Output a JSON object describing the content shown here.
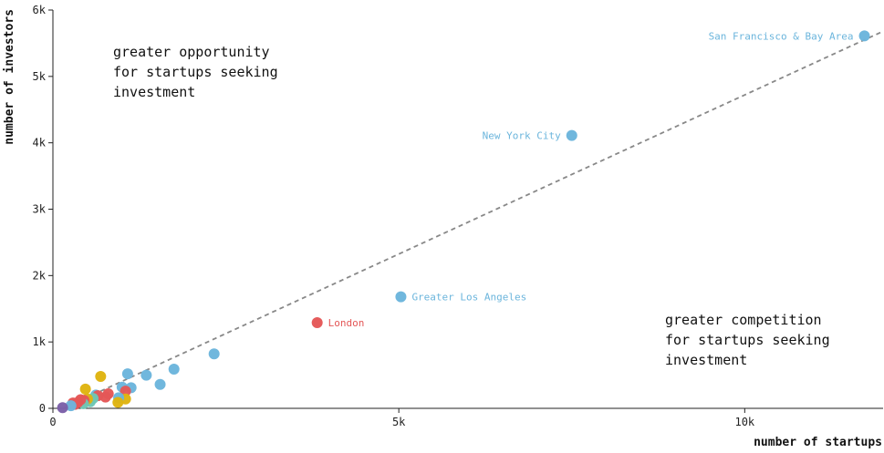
{
  "chart_data": {
    "type": "scatter",
    "xlabel": "number of startups",
    "ylabel": "number of investors",
    "xlim": [
      0,
      12000
    ],
    "ylim": [
      0,
      6000
    ],
    "x_ticks": [
      0,
      5000,
      10000
    ],
    "x_tick_labels": [
      "0",
      "5k",
      "10k"
    ],
    "y_ticks": [
      0,
      1000,
      2000,
      3000,
      4000,
      5000,
      6000
    ],
    "y_tick_labels": [
      "0",
      "1k",
      "2k",
      "3k",
      "4k",
      "5k",
      "6k"
    ],
    "grid": false,
    "reference_line": {
      "style": "dashed",
      "color": "#888888",
      "from": [
        150,
        0
      ],
      "to": [
        12000,
        5680
      ]
    },
    "annotations": [
      {
        "lines": [
          "greater opportunity",
          "for startups seeking",
          "investment"
        ],
        "position": "top-left"
      },
      {
        "lines": [
          "greater competition",
          "for startups seeking",
          "investment"
        ],
        "position": "bottom-right"
      }
    ],
    "colors": {
      "blue": "#6bb5dc",
      "red": "#e45757",
      "yellow": "#dfb40f",
      "teal": "#6ec6b4",
      "purple": "#7b5fa8"
    },
    "points": [
      {
        "x": 11730,
        "y": 5610,
        "color": "blue",
        "label": "San Francisco & Bay Area",
        "label_side": "left"
      },
      {
        "x": 7500,
        "y": 4110,
        "color": "blue",
        "label": "New York City",
        "label_side": "left"
      },
      {
        "x": 5030,
        "y": 1680,
        "color": "blue",
        "label": "Greater Los Angeles",
        "label_side": "right"
      },
      {
        "x": 3820,
        "y": 1290,
        "color": "red",
        "label": "London",
        "label_side": "right"
      },
      {
        "x": 2330,
        "y": 820,
        "color": "blue"
      },
      {
        "x": 1750,
        "y": 590,
        "color": "blue"
      },
      {
        "x": 1550,
        "y": 360,
        "color": "blue"
      },
      {
        "x": 1350,
        "y": 500,
        "color": "blue"
      },
      {
        "x": 1080,
        "y": 520,
        "color": "blue"
      },
      {
        "x": 1130,
        "y": 310,
        "color": "blue"
      },
      {
        "x": 1000,
        "y": 320,
        "color": "blue"
      },
      {
        "x": 1050,
        "y": 260,
        "color": "red"
      },
      {
        "x": 1050,
        "y": 140,
        "color": "yellow"
      },
      {
        "x": 950,
        "y": 160,
        "color": "blue"
      },
      {
        "x": 940,
        "y": 90,
        "color": "yellow"
      },
      {
        "x": 800,
        "y": 220,
        "color": "red"
      },
      {
        "x": 760,
        "y": 170,
        "color": "red"
      },
      {
        "x": 690,
        "y": 480,
        "color": "yellow"
      },
      {
        "x": 620,
        "y": 200,
        "color": "blue"
      },
      {
        "x": 650,
        "y": 190,
        "color": "red"
      },
      {
        "x": 580,
        "y": 150,
        "color": "teal"
      },
      {
        "x": 540,
        "y": 100,
        "color": "teal"
      },
      {
        "x": 500,
        "y": 140,
        "color": "yellow"
      },
      {
        "x": 470,
        "y": 290,
        "color": "yellow"
      },
      {
        "x": 450,
        "y": 120,
        "color": "red"
      },
      {
        "x": 440,
        "y": 70,
        "color": "teal"
      },
      {
        "x": 400,
        "y": 130,
        "color": "red"
      },
      {
        "x": 360,
        "y": 90,
        "color": "red"
      },
      {
        "x": 320,
        "y": 60,
        "color": "red"
      },
      {
        "x": 290,
        "y": 80,
        "color": "red"
      },
      {
        "x": 260,
        "y": 40,
        "color": "blue"
      },
      {
        "x": 140,
        "y": 10,
        "color": "purple"
      }
    ]
  }
}
